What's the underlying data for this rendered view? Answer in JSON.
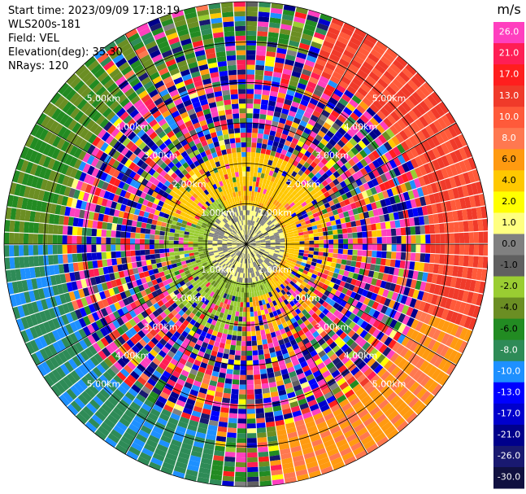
{
  "info": {
    "start_time": "Start time: 2023/09/09 17:18:19",
    "instrument": "WLS200s-181",
    "field": "Field: VEL",
    "elevation": "Elevation(deg): 35.30",
    "nrays": "NRays: 120"
  },
  "colorbar": {
    "unit": "m/s",
    "ticks": [
      "26.0",
      "21.0",
      "17.0",
      "13.0",
      "10.0",
      "8.0",
      "6.0",
      "4.0",
      "2.0",
      "1.0",
      "0.0",
      "-1.0",
      "-2.0",
      "-4.0",
      "-6.0",
      "-8.0",
      "-10.0",
      "-13.0",
      "-17.0",
      "-21.0",
      "-26.0",
      "-30.0"
    ],
    "colors": [
      "#ff3fbf",
      "#ff1e55",
      "#ff1e1e",
      "#f03a2a",
      "#ff5a3a",
      "#ff7850",
      "#ff9a10",
      "#ffc800",
      "#ffff00",
      "#ffff80",
      "#808080",
      "#606060",
      "#9acd32",
      "#6b8e23",
      "#228b22",
      "#2e8b57",
      "#1e90ff",
      "#0000ff",
      "#0000cd",
      "#00008b",
      "#191970",
      "#101040"
    ]
  },
  "chart_data": {
    "type": "ppi",
    "title": "",
    "n_rays": 120,
    "max_range_km": 6,
    "range_rings": [
      {
        "label": "1.00km",
        "value": 1
      },
      {
        "label": "2.00km",
        "value": 2
      },
      {
        "label": "3.00km",
        "value": 3
      },
      {
        "label": "4.00km",
        "value": 4
      },
      {
        "label": "5.00km",
        "value": 5
      }
    ],
    "azimuth_lines_deg": [
      0,
      30,
      60,
      90,
      120,
      150,
      180,
      210,
      240,
      270,
      300,
      330
    ],
    "value_range": [
      -30,
      26
    ],
    "inner_pattern": [
      {
        "sector": "north",
        "range_km": [
          0.4,
          1.3
        ],
        "value_ms": 3
      },
      {
        "sector": "east",
        "range_km": [
          0.4,
          1.3
        ],
        "value_ms": 3
      },
      {
        "sector": "south-west",
        "range_km": [
          0.4,
          1.3
        ],
        "value_ms": -3
      },
      {
        "sector": "north-west",
        "range_km": [
          1.0,
          2.2
        ],
        "value_ms": 2
      },
      {
        "sector": "center",
        "range_km": [
          0,
          0.9
        ],
        "value_ms": 0
      }
    ],
    "outer": "noisy velocities spanning full scale beyond ~2 km"
  }
}
